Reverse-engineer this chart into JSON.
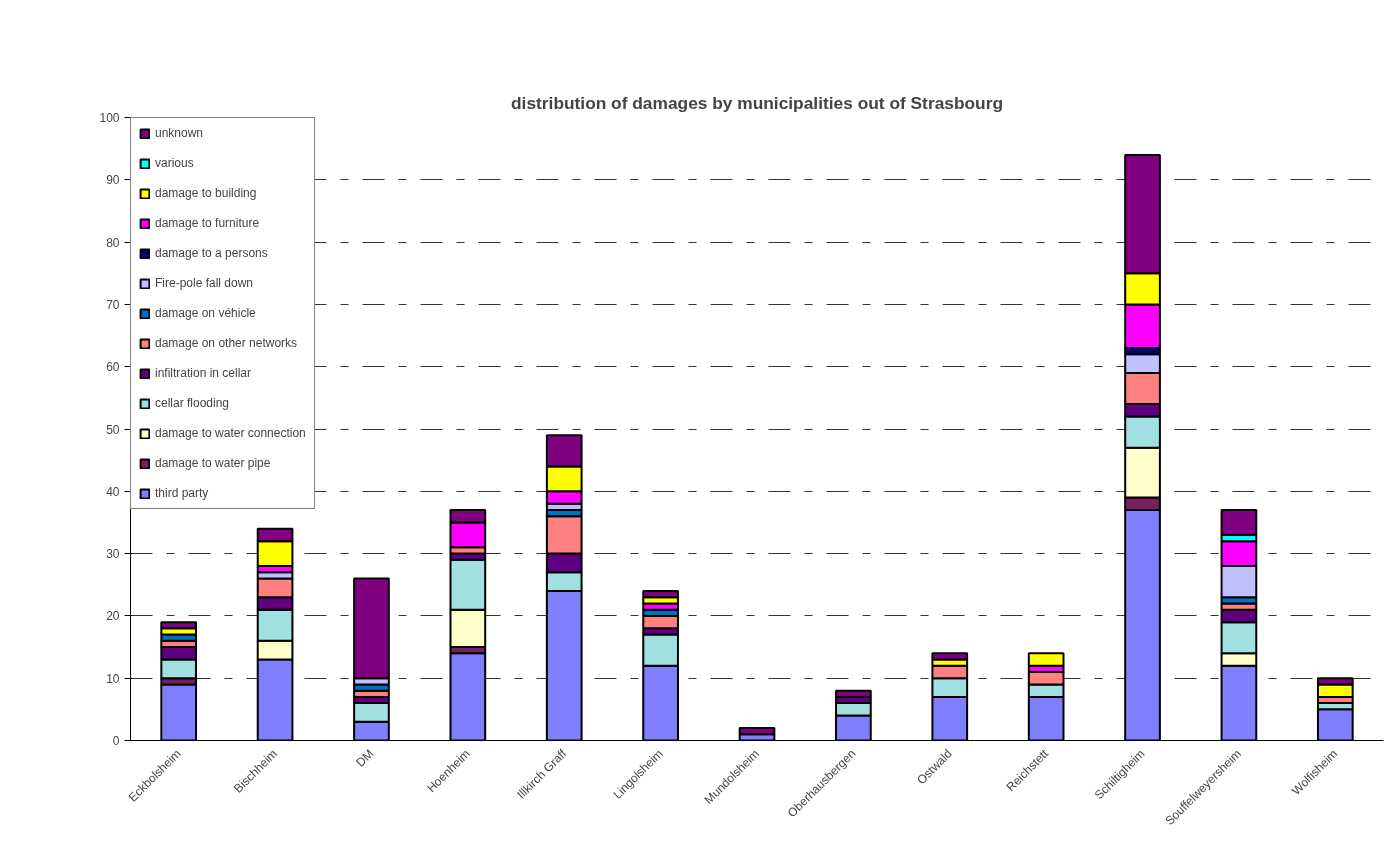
{
  "chart_data": {
    "type": "bar",
    "title": "distribution of damages by municipalities out of Strasbourg",
    "categories": [
      "Eckbolsheim",
      "Bischheim",
      "DM",
      "Hoenheim",
      "Illkirch Graff",
      "Lingolsheim",
      "Mundolsheim",
      "Oberhausbergen",
      "Ostwald",
      "Reichstett",
      "Schiltigheim",
      "Souffelweyersheim",
      "Wolfisheim"
    ],
    "stacked": true,
    "ylim": [
      0,
      100
    ],
    "yticks": [
      0,
      10,
      20,
      30,
      40,
      50,
      60,
      70,
      80,
      90,
      100
    ],
    "grid": "y",
    "legend": "top left",
    "series": [
      {
        "name": "third party",
        "color": "#8080ff",
        "values": [
          9,
          13,
          3,
          14,
          24,
          12,
          1,
          4,
          7,
          7,
          37,
          12,
          5
        ]
      },
      {
        "name": "damage to water pipe",
        "color": "#7a2060",
        "values": [
          1,
          0,
          0,
          1,
          0,
          0,
          0,
          0,
          0,
          0,
          2,
          0,
          0
        ]
      },
      {
        "name": "damage to water connection",
        "color": "#ffffcc",
        "values": [
          0,
          3,
          0,
          6,
          0,
          0,
          0,
          0,
          0,
          0,
          8,
          2,
          0
        ]
      },
      {
        "name": "cellar flooding",
        "color": "#a0e0e0",
        "values": [
          3,
          5,
          3,
          8,
          3,
          5,
          0,
          2,
          3,
          2,
          5,
          5,
          1
        ]
      },
      {
        "name": "infiltration in cellar",
        "color": "#600080",
        "values": [
          2,
          2,
          1,
          1,
          3,
          1,
          0,
          1,
          0,
          0,
          2,
          2,
          0
        ]
      },
      {
        "name": "damage on other networks",
        "color": "#ff8080",
        "values": [
          1,
          3,
          1,
          1,
          6,
          2,
          0,
          0,
          2,
          2,
          5,
          1,
          1
        ]
      },
      {
        "name": "damage on véhicle",
        "color": "#0070c0",
        "values": [
          1,
          0,
          1,
          0,
          1,
          1,
          0,
          0,
          0,
          0,
          0,
          1,
          0
        ]
      },
      {
        "name": "Fire-pole fall down",
        "color": "#c0c0ff",
        "values": [
          0,
          1,
          1,
          0,
          1,
          0,
          0,
          0,
          0,
          0,
          3,
          5,
          0
        ]
      },
      {
        "name": "damage to a persons",
        "color": "#000080",
        "values": [
          0,
          0,
          0,
          0,
          0,
          0,
          0,
          0,
          0,
          0,
          1,
          0,
          0
        ]
      },
      {
        "name": "damage to furniture",
        "color": "#ff00ff",
        "values": [
          0,
          1,
          0,
          4,
          2,
          1,
          0,
          0,
          0,
          1,
          7,
          4,
          0
        ]
      },
      {
        "name": "damage to building",
        "color": "#ffff00",
        "values": [
          1,
          4,
          0,
          0,
          4,
          1,
          0,
          0,
          1,
          2,
          5,
          0,
          2
        ]
      },
      {
        "name": "various",
        "color": "#00ffff",
        "values": [
          0,
          0,
          0,
          0,
          0,
          0,
          0,
          0,
          0,
          0,
          0,
          1,
          0
        ]
      },
      {
        "name": "unknown",
        "color": "#800080",
        "values": [
          1,
          2,
          16,
          2,
          5,
          1,
          1,
          1,
          1,
          0,
          19,
          4,
          1
        ]
      }
    ]
  }
}
